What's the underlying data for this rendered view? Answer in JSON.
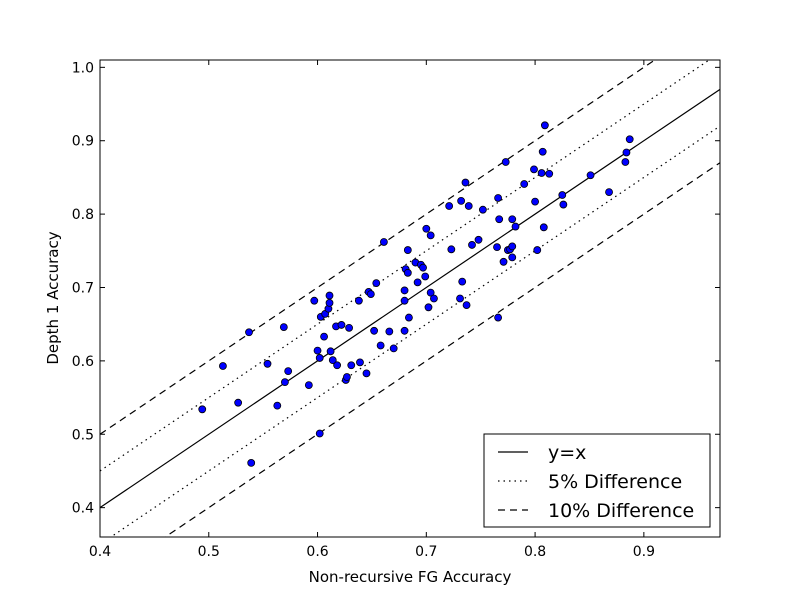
{
  "chart_data": {
    "type": "scatter",
    "xlabel": "Non-recursive FG Accuracy",
    "ylabel": "Depth 1 Accuracy",
    "xlim": [
      0.4,
      0.97
    ],
    "ylim": [
      0.36,
      1.01
    ],
    "x_ticks": [
      0.4,
      0.5,
      0.6,
      0.7,
      0.8,
      0.9
    ],
    "x_tick_labels": [
      "0.4",
      "0.5",
      "0.6",
      "0.7",
      "0.8",
      "0.9"
    ],
    "y_ticks": [
      0.4,
      0.5,
      0.6,
      0.7,
      0.8,
      0.9,
      1.0
    ],
    "y_tick_labels": [
      "0.4",
      "0.5",
      "0.6",
      "0.7",
      "0.8",
      "0.9",
      "1.0"
    ],
    "grid": false,
    "legend_position": "bottom-right",
    "point_color": "#0000ff",
    "reference_lines": [
      {
        "label": "y=x",
        "style": "solid",
        "offset": 0.0
      },
      {
        "label": "5% Difference",
        "style": "dotted",
        "offset": 0.05
      },
      {
        "label": "",
        "style": "dotted",
        "offset": -0.05
      },
      {
        "label": "10% Difference",
        "style": "dashed",
        "offset": 0.1
      },
      {
        "label": "",
        "style": "dashed",
        "offset": -0.1
      }
    ],
    "legend": [
      {
        "label": "y=x",
        "style": "solid"
      },
      {
        "label": "5% Difference",
        "style": "dotted"
      },
      {
        "label": "10% Difference",
        "style": "dashed"
      }
    ],
    "points": [
      [
        0.494,
        0.534
      ],
      [
        0.513,
        0.593
      ],
      [
        0.527,
        0.543
      ],
      [
        0.537,
        0.639
      ],
      [
        0.539,
        0.461
      ],
      [
        0.554,
        0.596
      ],
      [
        0.563,
        0.539
      ],
      [
        0.569,
        0.646
      ],
      [
        0.57,
        0.571
      ],
      [
        0.573,
        0.586
      ],
      [
        0.592,
        0.567
      ],
      [
        0.597,
        0.682
      ],
      [
        0.6,
        0.614
      ],
      [
        0.602,
        0.604
      ],
      [
        0.602,
        0.501
      ],
      [
        0.603,
        0.66
      ],
      [
        0.606,
        0.633
      ],
      [
        0.607,
        0.664
      ],
      [
        0.61,
        0.671
      ],
      [
        0.611,
        0.679
      ],
      [
        0.611,
        0.689
      ],
      [
        0.612,
        0.613
      ],
      [
        0.614,
        0.601
      ],
      [
        0.617,
        0.647
      ],
      [
        0.618,
        0.594
      ],
      [
        0.622,
        0.649
      ],
      [
        0.626,
        0.574
      ],
      [
        0.627,
        0.578
      ],
      [
        0.629,
        0.645
      ],
      [
        0.631,
        0.594
      ],
      [
        0.638,
        0.682
      ],
      [
        0.639,
        0.598
      ],
      [
        0.645,
        0.583
      ],
      [
        0.647,
        0.694
      ],
      [
        0.649,
        0.691
      ],
      [
        0.652,
        0.641
      ],
      [
        0.654,
        0.706
      ],
      [
        0.658,
        0.621
      ],
      [
        0.661,
        0.762
      ],
      [
        0.666,
        0.64
      ],
      [
        0.67,
        0.617
      ],
      [
        0.68,
        0.696
      ],
      [
        0.68,
        0.641
      ],
      [
        0.68,
        0.682
      ],
      [
        0.681,
        0.725
      ],
      [
        0.683,
        0.72
      ],
      [
        0.683,
        0.751
      ],
      [
        0.684,
        0.659
      ],
      [
        0.69,
        0.734
      ],
      [
        0.692,
        0.707
      ],
      [
        0.695,
        0.731
      ],
      [
        0.697,
        0.727
      ],
      [
        0.699,
        0.715
      ],
      [
        0.7,
        0.78
      ],
      [
        0.702,
        0.673
      ],
      [
        0.704,
        0.771
      ],
      [
        0.704,
        0.693
      ],
      [
        0.707,
        0.685
      ],
      [
        0.721,
        0.811
      ],
      [
        0.723,
        0.752
      ],
      [
        0.731,
        0.685
      ],
      [
        0.732,
        0.818
      ],
      [
        0.733,
        0.708
      ],
      [
        0.736,
        0.843
      ],
      [
        0.737,
        0.676
      ],
      [
        0.739,
        0.811
      ],
      [
        0.742,
        0.758
      ],
      [
        0.748,
        0.765
      ],
      [
        0.752,
        0.806
      ],
      [
        0.765,
        0.755
      ],
      [
        0.766,
        0.822
      ],
      [
        0.766,
        0.659
      ],
      [
        0.767,
        0.793
      ],
      [
        0.771,
        0.735
      ],
      [
        0.773,
        0.871
      ],
      [
        0.775,
        0.751
      ],
      [
        0.777,
        0.752
      ],
      [
        0.779,
        0.756
      ],
      [
        0.779,
        0.793
      ],
      [
        0.779,
        0.741
      ],
      [
        0.782,
        0.783
      ],
      [
        0.79,
        0.841
      ],
      [
        0.799,
        0.861
      ],
      [
        0.8,
        0.817
      ],
      [
        0.802,
        0.751
      ],
      [
        0.806,
        0.856
      ],
      [
        0.807,
        0.885
      ],
      [
        0.808,
        0.782
      ],
      [
        0.809,
        0.921
      ],
      [
        0.813,
        0.855
      ],
      [
        0.825,
        0.826
      ],
      [
        0.826,
        0.813
      ],
      [
        0.851,
        0.853
      ],
      [
        0.868,
        0.83
      ],
      [
        0.883,
        0.871
      ],
      [
        0.884,
        0.884
      ],
      [
        0.887,
        0.902
      ]
    ]
  }
}
